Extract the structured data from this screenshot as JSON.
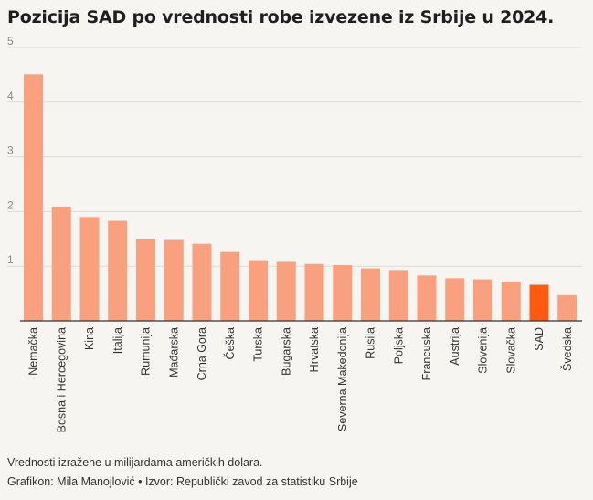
{
  "title": "Pozicija SAD po vrednosti robe izvezene iz Srbije u 2024.",
  "footer": {
    "note": "Vrednosti izražene u milijardama američkih dolara.",
    "credit": "Grafikon: Mila Manojlović • Izvor: Republički zavod za statistiku Srbije"
  },
  "colors": {
    "bar": "#f9a07e",
    "highlight": "#ff5a0f"
  },
  "chart_data": {
    "type": "bar",
    "title": "Pozicija SAD po vrednosti robe izvezene iz Srbije u 2024.",
    "xlabel": "",
    "ylabel": "",
    "ylim": [
      0,
      5
    ],
    "yticks": [
      1,
      2,
      3,
      4,
      5
    ],
    "grid": true,
    "highlight": "SAD",
    "categories": [
      "Nemačka",
      "Bosna i Hercegovina",
      "Kina",
      "Italija",
      "Rumunija",
      "Mađarska",
      "Crna Gora",
      "Češka",
      "Turska",
      "Bugarska",
      "Hrvatska",
      "Severna Makedonija",
      "Rusija",
      "Poljska",
      "Francuska",
      "Austrija",
      "Slovenija",
      "Slovačka",
      "SAD",
      "Švedska"
    ],
    "values": [
      4.51,
      2.09,
      1.9,
      1.83,
      1.49,
      1.48,
      1.41,
      1.26,
      1.11,
      1.08,
      1.04,
      1.02,
      0.96,
      0.93,
      0.83,
      0.78,
      0.76,
      0.72,
      0.66,
      0.47
    ]
  }
}
